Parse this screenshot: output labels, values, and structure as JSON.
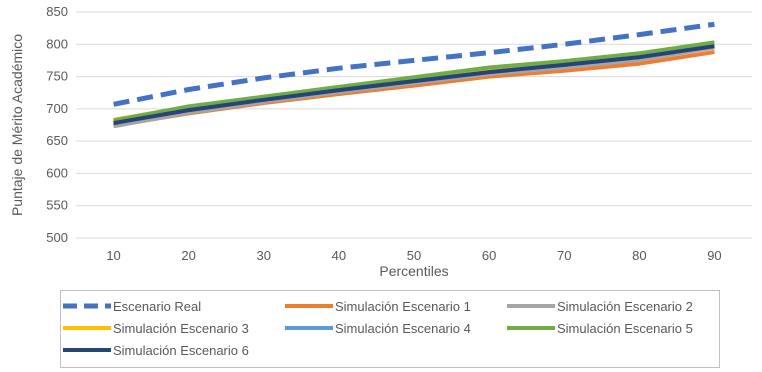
{
  "chart_data": {
    "type": "line",
    "title": "",
    "xlabel": "Percentiles",
    "ylabel": "Puntaje de Mérito Académico",
    "categories": [
      "10",
      "20",
      "30",
      "40",
      "50",
      "60",
      "70",
      "80",
      "90"
    ],
    "ylim": [
      500,
      850
    ],
    "yticks": [
      500,
      550,
      600,
      650,
      700,
      750,
      800,
      850
    ],
    "grid": true,
    "legend_position": "bottom",
    "series": [
      {
        "name": "Escenario Real",
        "color": "#4472C4",
        "dashed": true,
        "width": 5,
        "values": [
          707,
          730,
          748,
          763,
          775,
          787,
          800,
          815,
          831
        ]
      },
      {
        "name": "Simulación Escenario 1",
        "color": "#ED7D31",
        "dashed": false,
        "width": 4,
        "values": [
          674,
          693,
          709,
          723,
          736,
          750,
          759,
          770,
          788
        ]
      },
      {
        "name": "Simulación Escenario 2",
        "color": "#A5A5A5",
        "dashed": false,
        "width": 4,
        "values": [
          673,
          694,
          711,
          726,
          740,
          754,
          764,
          776,
          795
        ]
      },
      {
        "name": "Simulación Escenario 3",
        "color": "#FFC000",
        "dashed": false,
        "width": 4,
        "values": [
          683,
          703,
          718,
          733,
          748,
          762,
          773,
          785,
          802
        ]
      },
      {
        "name": "Simulación Escenario 4",
        "color": "#5B9BD5",
        "dashed": false,
        "width": 4,
        "values": [
          679,
          698,
          714,
          729,
          743,
          757,
          768,
          780,
          798
        ]
      },
      {
        "name": "Simulación Escenario 5",
        "color": "#70AD47",
        "dashed": false,
        "width": 4,
        "values": [
          682,
          704,
          719,
          734,
          749,
          764,
          774,
          786,
          803
        ]
      },
      {
        "name": "Simulación Escenario 6",
        "color": "#264478",
        "dashed": false,
        "width": 4,
        "values": [
          678,
          698,
          714,
          729,
          743,
          757,
          768,
          780,
          797
        ]
      }
    ]
  }
}
